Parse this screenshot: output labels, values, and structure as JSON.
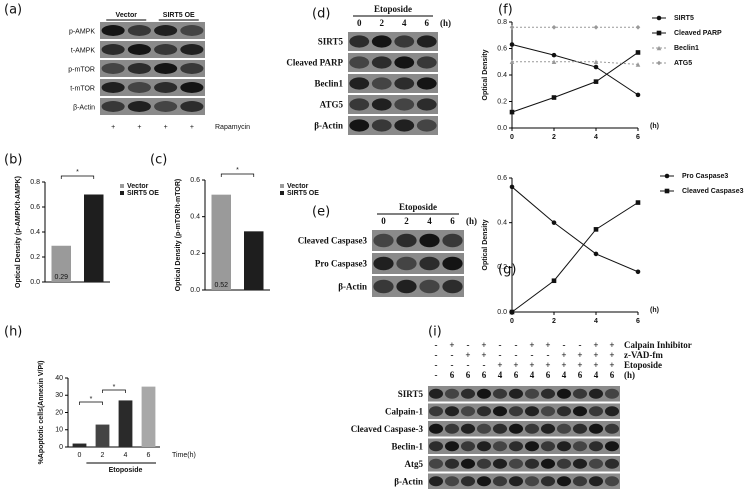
{
  "panels": [
    "(a)",
    "(b)",
    "(c)",
    "(d)",
    "(e)",
    "(f)",
    "(g)",
    "(h)",
    "(i)"
  ],
  "blots": [
    {
      "groups": [
        "Vector",
        "SIRT5 OE"
      ],
      "rows": [
        "p-AMPK",
        "t-AMPK",
        "p-mTOR",
        "t-mTOR",
        "β-Actin"
      ],
      "footer": [
        "+",
        "+",
        "+",
        "+"
      ],
      "footer_label": "Rapamycin"
    },
    {
      "header": "Etoposide",
      "lanes": [
        "0",
        "2",
        "4",
        "6"
      ],
      "unit": "(h)",
      "rows": [
        "SIRT5",
        "Cleaved PARP",
        "Beclin1",
        "ATG5",
        "β-Actin"
      ]
    },
    {
      "header": "Etoposide",
      "lanes": [
        "0",
        "2",
        "4",
        "6"
      ],
      "unit": "(h)",
      "rows": [
        "Cleaved Caspase3",
        "Pro Caspase3",
        "β-Actin"
      ]
    },
    {
      "treatments": [
        {
          "name": "Calpain Inhibitor",
          "signs": [
            "-",
            "+",
            "-",
            "+",
            "-",
            "-",
            "+",
            "+",
            "-",
            "-",
            "+",
            "+"
          ]
        },
        {
          "name": "z-VAD-fm",
          "signs": [
            "-",
            "-",
            "+",
            "+",
            "-",
            "-",
            "-",
            "-",
            "+",
            "+",
            "+",
            "+"
          ]
        },
        {
          "name": "Etoposide",
          "signs": [
            "-",
            "-",
            "-",
            "-",
            "+",
            "+",
            "+",
            "+",
            "+",
            "+",
            "+",
            "+"
          ]
        },
        {
          "name": "(h)",
          "signs": [
            "-",
            "6",
            "6",
            "6",
            "4",
            "6",
            "4",
            "6",
            "4",
            "6",
            "4",
            "6"
          ]
        }
      ],
      "rows": [
        "SIRT5",
        "Calpain-1",
        "Cleaved Caspase-3",
        "Beclin-1",
        "Atg5",
        "β-Actin"
      ]
    }
  ],
  "chart_data": [
    {
      "type": "bar",
      "ylabel": "Optical Density (p-AMPK/t-AMPK)",
      "categories": [
        "Vector",
        "SIRT5 OE"
      ],
      "values": [
        0.29,
        0.7
      ],
      "value_labels": [
        "0.29",
        null
      ],
      "colors": [
        "#9a9a9a",
        "#1e1e1e"
      ],
      "ylim": [
        0,
        0.8
      ],
      "yticks": [
        {
          "value": 0,
          "label": "0.0"
        },
        0.2,
        0.4,
        0.6,
        0.8
      ],
      "annotations": [
        "*"
      ]
    },
    {
      "type": "bar",
      "ylabel": "Optical Density (p-mTOR/t-mTOR)",
      "categories": [
        "Vector",
        "SIRT5 OE"
      ],
      "values": [
        0.52,
        0.32
      ],
      "value_labels": [
        "0.52",
        null
      ],
      "colors": [
        "#9a9a9a",
        "#1e1e1e"
      ],
      "ylim": [
        0,
        0.6
      ],
      "yticks": [
        {
          "value": 0,
          "label": "0.0"
        },
        0.2,
        0.4,
        0.6
      ],
      "annotations": [
        "*"
      ]
    },
    {
      "type": "line",
      "ylabel": "Optical Density",
      "xlabel": "(h)",
      "x": [
        0,
        2,
        4,
        6
      ],
      "xlim": [
        0,
        6
      ],
      "xticks": [
        0,
        2,
        4,
        6
      ],
      "ylim": [
        0,
        0.8
      ],
      "yticks": [
        {
          "value": 0,
          "label": "0.0"
        },
        0.2,
        0.4,
        0.6,
        0.8
      ],
      "series": [
        {
          "name": "SIRT5",
          "color": "#111111",
          "marker": "circle",
          "dashed": false,
          "values": [
            0.63,
            0.55,
            0.46,
            0.25
          ]
        },
        {
          "name": "Cleaved PARP",
          "color": "#111111",
          "marker": "square",
          "dashed": false,
          "values": [
            0.12,
            0.23,
            0.35,
            0.57
          ]
        },
        {
          "name": "Beclin1",
          "color": "#999999",
          "marker": "triangle",
          "dashed": true,
          "values": [
            0.5,
            0.5,
            0.5,
            0.48
          ]
        },
        {
          "name": "ATG5",
          "color": "#999999",
          "marker": "diamond",
          "dashed": true,
          "values": [
            0.76,
            0.76,
            0.76,
            0.76
          ]
        }
      ]
    },
    {
      "type": "line",
      "ylabel": "Optical Density",
      "xlabel": "(h)",
      "x": [
        0,
        2,
        4,
        6
      ],
      "xlim": [
        0,
        6
      ],
      "xticks": [
        0,
        2,
        4,
        6
      ],
      "ylim": [
        0,
        0.6
      ],
      "yticks": [
        {
          "value": 0,
          "label": "0.0"
        },
        0.2,
        0.4,
        0.6
      ],
      "series": [
        {
          "name": "Pro Caspase3",
          "color": "#111111",
          "marker": "circle",
          "dashed": false,
          "values": [
            0.56,
            0.4,
            0.26,
            0.18
          ]
        },
        {
          "name": "Cleaved Caspase3",
          "color": "#111111",
          "marker": "square",
          "dashed": false,
          "values": [
            0,
            0.14,
            0.37,
            0.49
          ]
        }
      ]
    },
    {
      "type": "bar",
      "ylabel": "%Apoptotic cells(Annexin V/PI)",
      "xlabel": "Time(h)",
      "group_label": "Etoposide",
      "categories": [
        "0",
        "2",
        "4",
        "6"
      ],
      "values": [
        2,
        13,
        27,
        35
      ],
      "colors": [
        "#2a2a2a",
        "#444444",
        "#2a2a2a",
        "#a8a8a8"
      ],
      "ylim": [
        0,
        40
      ],
      "yticks": [
        0,
        10,
        20,
        30,
        40
      ],
      "annotations": [
        "*",
        "*"
      ]
    }
  ]
}
